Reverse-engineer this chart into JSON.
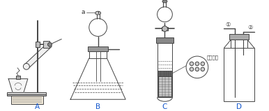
{
  "bg_color": "#ffffff",
  "label_A": "A",
  "label_B": "B",
  "label_C": "C",
  "label_D": "D",
  "label_a": "a",
  "label_porous": "多孔隔板",
  "label_1": "①",
  "label_2": "②",
  "figsize": [
    3.86,
    1.6
  ],
  "dpi": 100,
  "line_color": "#444444",
  "line_width": 0.7
}
